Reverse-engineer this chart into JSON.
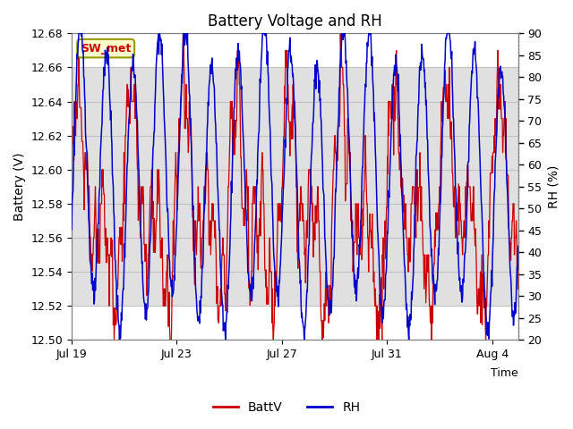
{
  "title": "Battery Voltage and RH",
  "xlabel": "Time",
  "ylabel_left": "Battery (V)",
  "ylabel_right": "RH (%)",
  "ylim_left": [
    12.5,
    12.68
  ],
  "ylim_right": [
    20,
    90
  ],
  "yticks_left": [
    12.5,
    12.52,
    12.54,
    12.56,
    12.58,
    12.6,
    12.62,
    12.64,
    12.66,
    12.68
  ],
  "yticks_right": [
    20,
    25,
    30,
    35,
    40,
    45,
    50,
    55,
    60,
    65,
    70,
    75,
    80,
    85,
    90
  ],
  "xtick_labels": [
    "Jul 19",
    "Jul 23",
    "Jul 27",
    "Jul 31",
    "Aug 4"
  ],
  "xtick_positions": [
    0,
    4,
    8,
    12,
    16
  ],
  "annotation_text": "SW_met",
  "annotation_color": "#cc0000",
  "annotation_bg": "#ffffcc",
  "annotation_border": "#999900",
  "batt_color": "#cc0000",
  "rh_color": "#0000cc",
  "legend_batt": "BattV",
  "legend_rh": "RH",
  "bg_band_lower": 12.52,
  "bg_band_upper": 12.66,
  "bg_band_color": "#e0e0e0",
  "grid_color": "#c0c0c0",
  "n_points": 1000,
  "n_days": 17
}
